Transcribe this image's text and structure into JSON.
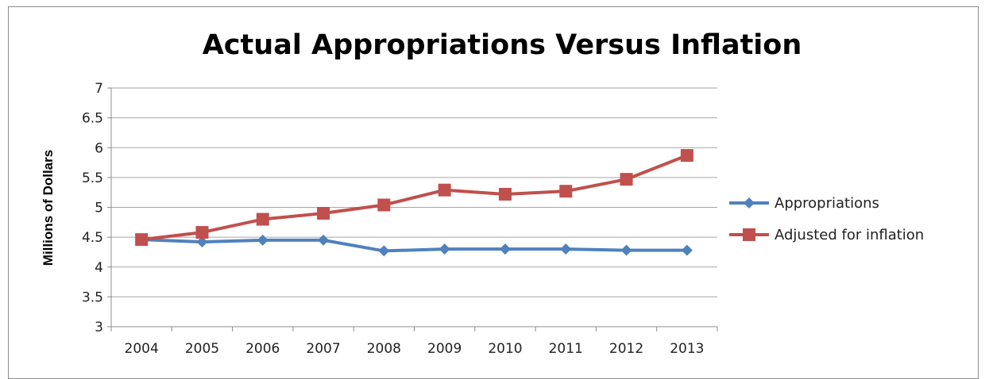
{
  "chart_data": {
    "type": "line",
    "title": "Actual Appropriations Versus Inflation",
    "xlabel": "",
    "ylabel": "Millions of Dollars",
    "x": [
      "2004",
      "2005",
      "2006",
      "2007",
      "2008",
      "2009",
      "2010",
      "2011",
      "2012",
      "2013"
    ],
    "yticks": [
      "3",
      "3.5",
      "4",
      "4.5",
      "5",
      "5.5",
      "6",
      "6.5",
      "7"
    ],
    "ylim": [
      3,
      7
    ],
    "grid": true,
    "legend_position": "right",
    "series": [
      {
        "name": "Appropriations",
        "color": "#4f81bd",
        "marker": "diamond",
        "values": [
          4.46,
          4.42,
          4.45,
          4.45,
          4.27,
          4.3,
          4.3,
          4.3,
          4.28,
          4.28
        ]
      },
      {
        "name": "Adjusted for inflation",
        "color": "#c0504d",
        "marker": "square",
        "values": [
          4.46,
          4.58,
          4.8,
          4.9,
          5.04,
          5.29,
          5.22,
          5.27,
          5.47,
          5.87
        ]
      }
    ]
  }
}
